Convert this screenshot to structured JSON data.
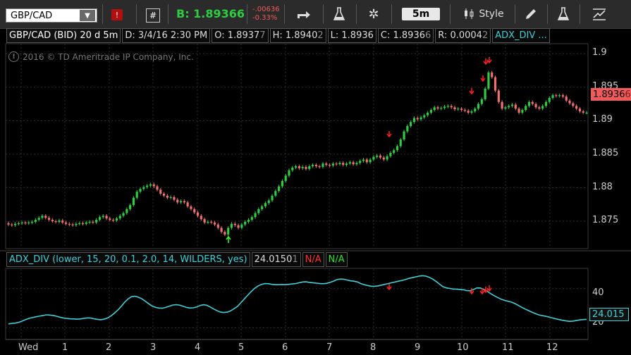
{
  "toolbar": {
    "symbol": "GBP/CAD",
    "bid_label": "B: 1.89366",
    "change_abs": "-.00636",
    "change_pct": "-0.33%",
    "timeframe": "5m",
    "style_label": "Style"
  },
  "info": {
    "title": "GBP/CAD (BID) 20 d 5m",
    "date": "D: 3/4/16 2:30 PM",
    "open_label": "O:",
    "open_main": "1.8937",
    "open_sub": "7",
    "high_label": "H:",
    "high_main": "1.8940",
    "high_sub": "2",
    "low": "L: 1.8936",
    "close_label": "C:",
    "close_main": "1.8936",
    "close_sub": "6",
    "range_label": "R:",
    "range_main": "0.0004",
    "range_sub": "2",
    "study": "ADX_DIV ..."
  },
  "copyright": "2016 © TD Ameritrade IP Company, Inc.",
  "price_axis": [
    "1.9",
    "1.895",
    "1.89",
    "1.885",
    "1.88",
    "1.875"
  ],
  "price_tag": "1.8936",
  "price_tag_sub": "6",
  "lower": {
    "study_label": "ADX_DIV (lower, 15, 20, 0.1, 2.0, 14, WILDERS, yes)",
    "value_main": "24.0150",
    "value_sub": "1",
    "na_red": "N/A",
    "na_green": "N/A",
    "axis_40": "40",
    "axis_20": "20",
    "tag": "24.015"
  },
  "x_axis": [
    "Wed",
    "1",
    "2",
    "3",
    "4",
    "5",
    "6",
    "7",
    "8",
    "9",
    "10",
    "11",
    "12"
  ],
  "colors": {
    "up": "#2ecc40",
    "down": "#f26f6f",
    "adx": "#3fd0d8",
    "bid": "#2ecc40",
    "arrow_down": "#ff2020",
    "arrow_up": "#30ff30"
  },
  "icons": [
    "share-icon",
    "flask-icon",
    "gear-icon",
    "studies-icon",
    "pencil-icon",
    "flask-icon",
    "trend-icon"
  ],
  "chart_data": {
    "type": "candlestick",
    "ylim": [
      1.871,
      1.9015
    ],
    "closes": [
      1.8745,
      1.8744,
      1.8746,
      1.8747,
      1.8748,
      1.8747,
      1.8748,
      1.8749,
      1.8752,
      1.8755,
      1.8758,
      1.8755,
      1.8752,
      1.875,
      1.8749,
      1.8751,
      1.8748,
      1.8746,
      1.8745,
      1.8744,
      1.8746,
      1.8747,
      1.8746,
      1.8748,
      1.8749,
      1.8748,
      1.8752,
      1.8756,
      1.8758,
      1.8754,
      1.8752,
      1.8751,
      1.8754,
      1.8758,
      1.8762,
      1.8768,
      1.8774,
      1.8785,
      1.8794,
      1.8798,
      1.8801,
      1.8803,
      1.8805,
      1.8802,
      1.8797,
      1.8791,
      1.8788,
      1.8785,
      1.8786,
      1.8782,
      1.8778,
      1.878,
      1.8778,
      1.8772,
      1.8768,
      1.8763,
      1.8758,
      1.8753,
      1.8748,
      1.8749,
      1.8748,
      1.8745,
      1.874,
      1.8734,
      1.873,
      1.874,
      1.8746,
      1.8744,
      1.874,
      1.8745,
      1.8749,
      1.8752,
      1.8756,
      1.8762,
      1.8768,
      1.8772,
      1.8777,
      1.8781,
      1.8788,
      1.8795,
      1.8802,
      1.881,
      1.8818,
      1.8826,
      1.883,
      1.8832,
      1.8829,
      1.8831,
      1.8828,
      1.8832,
      1.8834,
      1.8832,
      1.8831,
      1.8836,
      1.8834,
      1.8833,
      1.8836,
      1.8835,
      1.8837,
      1.8834,
      1.8836,
      1.8838,
      1.8835,
      1.8837,
      1.884,
      1.8842,
      1.8838,
      1.8842,
      1.8846,
      1.8848,
      1.8845,
      1.8842,
      1.8847,
      1.8852,
      1.8856,
      1.8862,
      1.8872,
      1.8884,
      1.8892,
      1.8898,
      1.8904,
      1.8902,
      1.8905,
      1.8908,
      1.8912,
      1.8916,
      1.892,
      1.8918,
      1.8919,
      1.8921,
      1.8922,
      1.892,
      1.8917,
      1.8918,
      1.8916,
      1.8915,
      1.8912,
      1.8914,
      1.8918,
      1.8925,
      1.8932,
      1.8948,
      1.8972,
      1.8965,
      1.8945,
      1.8928,
      1.8918,
      1.892,
      1.8922,
      1.8924,
      1.8918,
      1.8912,
      1.8916,
      1.8922,
      1.8928,
      1.8925,
      1.892,
      1.8918,
      1.8922,
      1.8928,
      1.8934,
      1.8938,
      1.8937,
      1.8938,
      1.8936,
      1.893,
      1.8926,
      1.8922,
      1.8918,
      1.8914,
      1.8912,
      1.8912
    ],
    "adx_series": [
      22,
      22.2,
      22.4,
      22.8,
      23.4,
      24.2,
      24.8,
      25.2,
      25.6,
      25.9,
      26.2,
      26.6,
      26.5,
      26.3,
      25.9,
      25.4,
      25,
      24.8,
      24.6,
      24.5,
      24.4,
      24.5,
      24.8,
      25,
      25,
      24.6,
      24.3,
      24.1,
      24.4,
      25,
      26.1,
      27.5,
      29.1,
      31,
      33.1,
      34.8,
      35.9,
      36.1,
      35.6,
      34.8,
      33.6,
      32.3,
      31.1,
      30.4,
      30.1,
      30,
      30.4,
      31,
      31.6,
      31.8,
      31.6,
      31,
      30.4,
      30.1,
      30.2,
      30.6,
      31.4,
      31.8,
      31.5,
      30.6,
      29.6,
      28.7,
      28,
      27.8,
      28,
      28.7,
      29.8,
      31,
      32.9,
      34.8,
      36.7,
      38.6,
      40.2,
      41.4,
      42.2,
      42.6,
      42.5,
      42.2,
      42,
      42,
      42.1,
      42,
      42.2,
      42.4,
      42.6,
      43,
      43.4,
      43.5,
      43.2,
      43,
      42.8,
      42.6,
      42.5,
      42.7,
      43.2,
      43.8,
      44.6,
      44.9,
      44.8,
      44.4,
      44,
      43.8,
      43.4,
      42.6,
      42,
      41.6,
      41.2,
      41.2,
      41.4,
      41.8,
      42.2,
      42.6,
      43,
      43.4,
      43.8,
      44.2,
      44.6,
      45.2,
      45.6,
      46,
      46.4,
      46.6,
      46.4,
      45.8,
      44.9,
      43.7,
      42.3,
      41,
      40.4,
      40.1,
      39.8,
      39.7,
      39.6,
      39.4,
      39,
      38.9,
      39.6,
      40.4,
      40.3,
      39.6,
      38.6,
      37.4,
      36.4,
      35.5,
      34.6,
      34,
      33.6,
      33.1,
      32.4,
      31.5,
      30.5,
      29.6,
      28.8,
      28,
      27.3,
      26.6,
      26.2,
      25.9,
      25.5,
      25,
      24.6,
      24.2,
      23.8,
      23.5,
      23.3,
      23.4,
      23.7,
      24,
      24.2,
      24.3
    ]
  }
}
